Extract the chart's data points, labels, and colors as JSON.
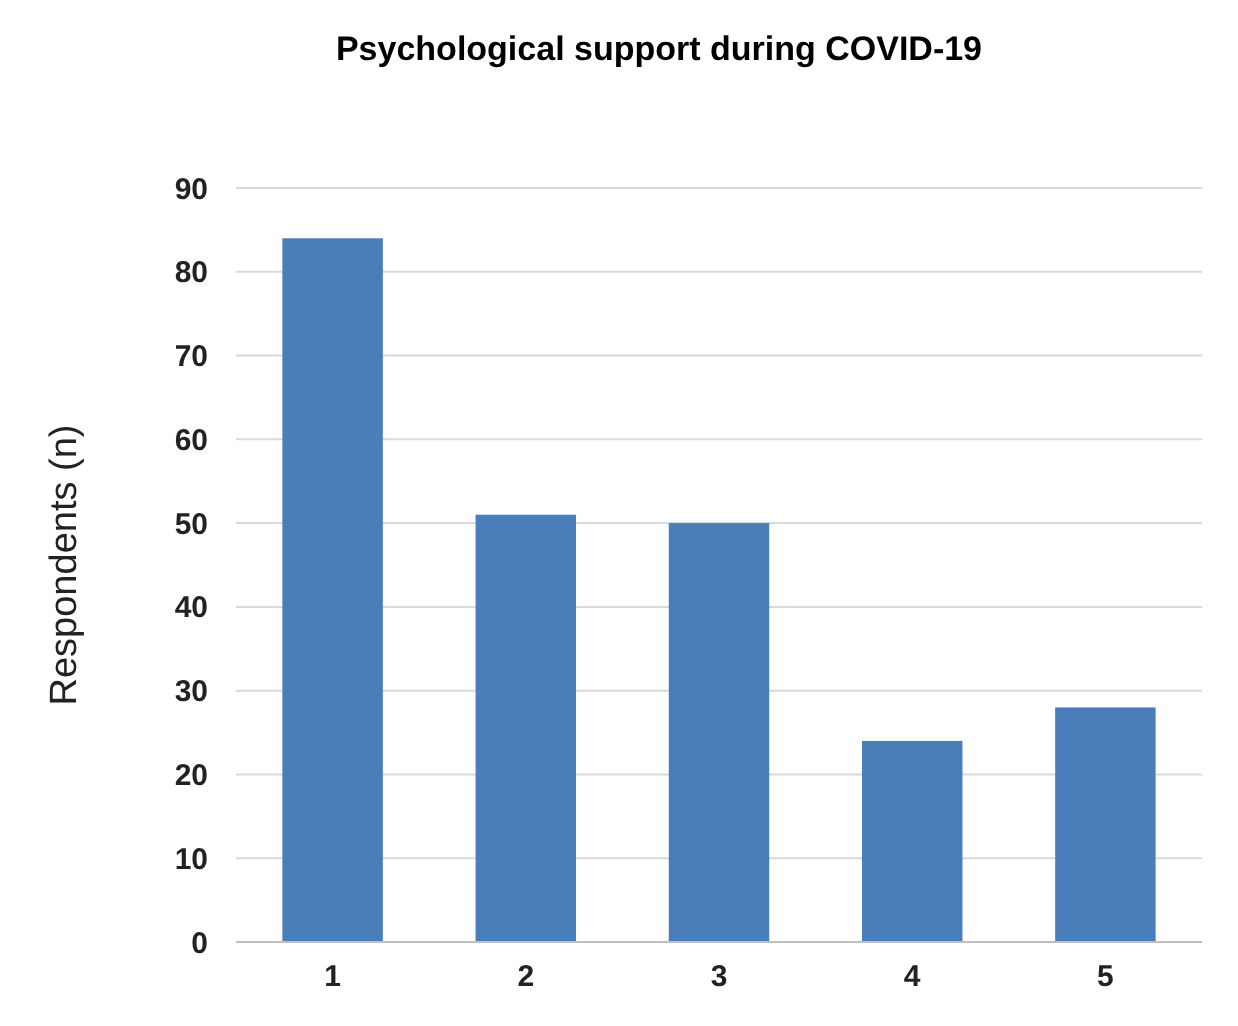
{
  "chart_data": {
    "type": "bar",
    "title": "Psychological support during COVID-19",
    "ylabel": "Respondents (n)",
    "categories": [
      "1",
      "2",
      "3",
      "4",
      "5"
    ],
    "values": [
      84,
      51,
      50,
      24,
      28
    ],
    "color": "#4a7ebb",
    "ylim": [
      0,
      90
    ],
    "yticks": [
      0,
      10,
      20,
      30,
      40,
      50,
      60,
      70,
      80,
      90
    ],
    "grid": "y"
  }
}
